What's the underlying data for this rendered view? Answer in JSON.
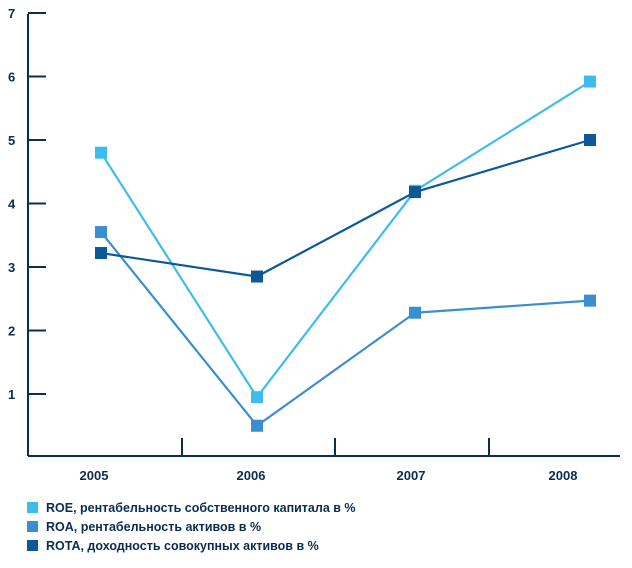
{
  "chart_data": {
    "type": "line",
    "categories": [
      "2005",
      "2006",
      "2007",
      "2008"
    ],
    "ylim": [
      0,
      7
    ],
    "yticks": [
      1,
      2,
      3,
      4,
      5,
      6,
      7
    ],
    "grid": false,
    "legend_position": "bottom-left",
    "series": [
      {
        "name": "ROE, рентабельность собственного капитала в %",
        "values": [
          4.8,
          0.95,
          4.2,
          5.92
        ],
        "color": "#3dbdee",
        "marker": "square"
      },
      {
        "name": "ROA, рентабельность активов в %",
        "values": [
          3.55,
          0.5,
          2.28,
          2.47
        ],
        "color": "#3a8fd0",
        "marker": "square"
      },
      {
        "name": "ROTA, доходность совокупных активов в %",
        "values": [
          3.22,
          2.85,
          4.18,
          5.0
        ],
        "color": "#0d5896",
        "marker": "square"
      }
    ]
  }
}
